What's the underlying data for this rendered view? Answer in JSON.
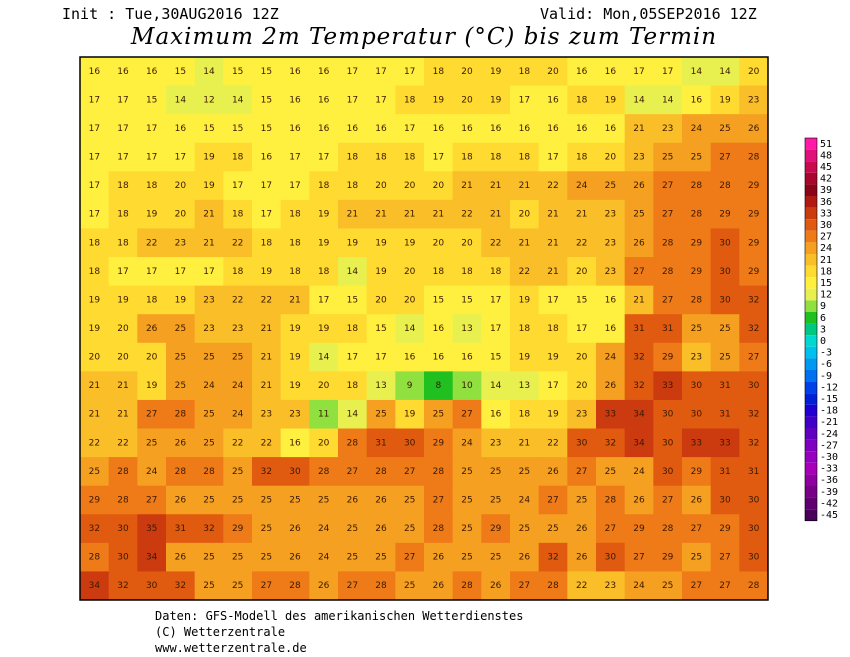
{
  "header": {
    "init": "Init : Tue,30AUG2016 12Z",
    "valid": "Valid: Mon,05SEP2016 12Z",
    "title": "Maximum 2m Temperatur (°C) bis zum Termin"
  },
  "colorbar": {
    "labels": [
      51,
      48,
      45,
      42,
      39,
      36,
      33,
      30,
      27,
      24,
      21,
      18,
      15,
      12,
      9,
      6,
      3,
      0,
      -3,
      -6,
      -9,
      -12,
      -15,
      -18,
      -21,
      -24,
      -27,
      -30,
      -33,
      -36,
      -39,
      -42,
      -45
    ],
    "colors": [
      "#ff1aa8",
      "#e0127a",
      "#c80a4e",
      "#a8062e",
      "#8c0418",
      "#b01a10",
      "#cc3a10",
      "#e05a10",
      "#ef7a18",
      "#f5a020",
      "#fabe28",
      "#ffda30",
      "#fff040",
      "#e8f050",
      "#90e040",
      "#20c020",
      "#00c880",
      "#00d8d0",
      "#00c0f0",
      "#0098f0",
      "#0070f0",
      "#0040e8",
      "#0020d8",
      "#2000d0",
      "#4000c8",
      "#6000c0",
      "#8000c0",
      "#9800c0",
      "#a800b8",
      "#9000a0",
      "#780088",
      "#600070",
      "#480058"
    ]
  },
  "map": {
    "rows": [
      [
        16,
        16,
        16,
        15,
        14,
        15,
        15,
        16,
        16,
        17,
        17,
        17,
        18,
        20,
        19,
        18,
        20,
        16,
        16,
        17,
        17,
        14,
        14,
        20
      ],
      [
        17,
        17,
        15,
        14,
        12,
        14,
        15,
        16,
        16,
        17,
        17,
        18,
        19,
        20,
        19,
        17,
        16,
        18,
        19,
        14,
        14,
        16,
        19,
        23
      ],
      [
        17,
        17,
        17,
        16,
        15,
        15,
        15,
        16,
        16,
        16,
        16,
        17,
        16,
        16,
        16,
        16,
        16,
        16,
        16,
        21,
        23,
        24,
        25,
        26
      ],
      [
        17,
        17,
        17,
        17,
        19,
        18,
        16,
        17,
        17,
        18,
        18,
        18,
        17,
        18,
        18,
        18,
        17,
        18,
        20,
        23,
        25,
        25,
        27,
        28
      ],
      [
        17,
        18,
        18,
        20,
        19,
        17,
        17,
        17,
        18,
        18,
        20,
        20,
        20,
        21,
        21,
        21,
        22,
        24,
        25,
        26,
        27,
        28,
        28,
        29
      ],
      [
        17,
        18,
        19,
        20,
        21,
        18,
        17,
        18,
        19,
        21,
        21,
        21,
        21,
        22,
        21,
        20,
        21,
        21,
        23,
        25,
        27,
        28,
        29,
        29
      ],
      [
        18,
        18,
        22,
        23,
        21,
        22,
        18,
        18,
        19,
        19,
        19,
        19,
        20,
        20,
        22,
        21,
        21,
        22,
        23,
        26,
        28,
        29,
        30,
        29
      ],
      [
        18,
        17,
        17,
        17,
        17,
        18,
        19,
        18,
        18,
        14,
        19,
        20,
        18,
        18,
        18,
        22,
        21,
        20,
        23,
        27,
        28,
        29,
        30,
        29
      ],
      [
        19,
        19,
        18,
        19,
        23,
        22,
        22,
        21,
        17,
        15,
        20,
        20,
        15,
        15,
        17,
        19,
        17,
        15,
        16,
        21,
        27,
        28,
        30,
        32
      ],
      [
        19,
        20,
        26,
        25,
        23,
        23,
        21,
        19,
        19,
        18,
        15,
        14,
        16,
        13,
        17,
        18,
        18,
        17,
        16,
        31,
        31,
        25,
        25,
        32
      ],
      [
        20,
        20,
        20,
        25,
        25,
        25,
        21,
        19,
        14,
        17,
        17,
        16,
        16,
        16,
        15,
        19,
        19,
        20,
        24,
        32,
        29,
        23,
        25,
        27
      ],
      [
        21,
        21,
        19,
        25,
        24,
        24,
        21,
        19,
        20,
        18,
        13,
        9,
        8,
        10,
        14,
        13,
        17,
        20,
        26,
        32,
        33,
        30,
        31,
        30
      ],
      [
        21,
        21,
        27,
        28,
        25,
        24,
        23,
        23,
        11,
        14,
        25,
        19,
        25,
        27,
        16,
        18,
        19,
        23,
        33,
        34,
        30,
        30,
        31,
        32
      ],
      [
        22,
        22,
        25,
        26,
        25,
        22,
        22,
        16,
        20,
        28,
        31,
        30,
        29,
        24,
        23,
        21,
        22,
        30,
        32,
        34,
        30,
        33,
        33,
        32
      ],
      [
        25,
        28,
        24,
        28,
        28,
        25,
        32,
        30,
        28,
        27,
        28,
        27,
        28,
        25,
        25,
        25,
        26,
        27,
        25,
        24,
        30,
        29,
        31,
        31
      ],
      [
        29,
        28,
        27,
        26,
        25,
        25,
        25,
        25,
        25,
        26,
        26,
        25,
        27,
        25,
        25,
        24,
        27,
        25,
        28,
        26,
        27,
        26,
        30,
        30
      ],
      [
        32,
        30,
        35,
        31,
        32,
        29,
        25,
        26,
        24,
        25,
        26,
        25,
        28,
        25,
        29,
        25,
        25,
        26,
        27,
        29,
        28,
        27,
        29,
        30
      ],
      [
        28,
        30,
        34,
        26,
        25,
        25,
        25,
        26,
        24,
        25,
        25,
        27,
        26,
        25,
        25,
        26,
        32,
        26,
        30,
        27,
        29,
        25,
        27,
        30
      ],
      [
        34,
        32,
        30,
        32,
        25,
        25,
        27,
        28,
        26,
        27,
        28,
        25,
        26,
        28,
        26,
        27,
        28,
        22,
        23,
        24,
        25,
        27,
        27,
        28
      ]
    ]
  },
  "footer": {
    "source": "Daten: GFS-Modell des amerikanischen Wetterdienstes",
    "copyright": "(C) Wetterzentrale",
    "url": "www.wetterzentrale.de"
  }
}
